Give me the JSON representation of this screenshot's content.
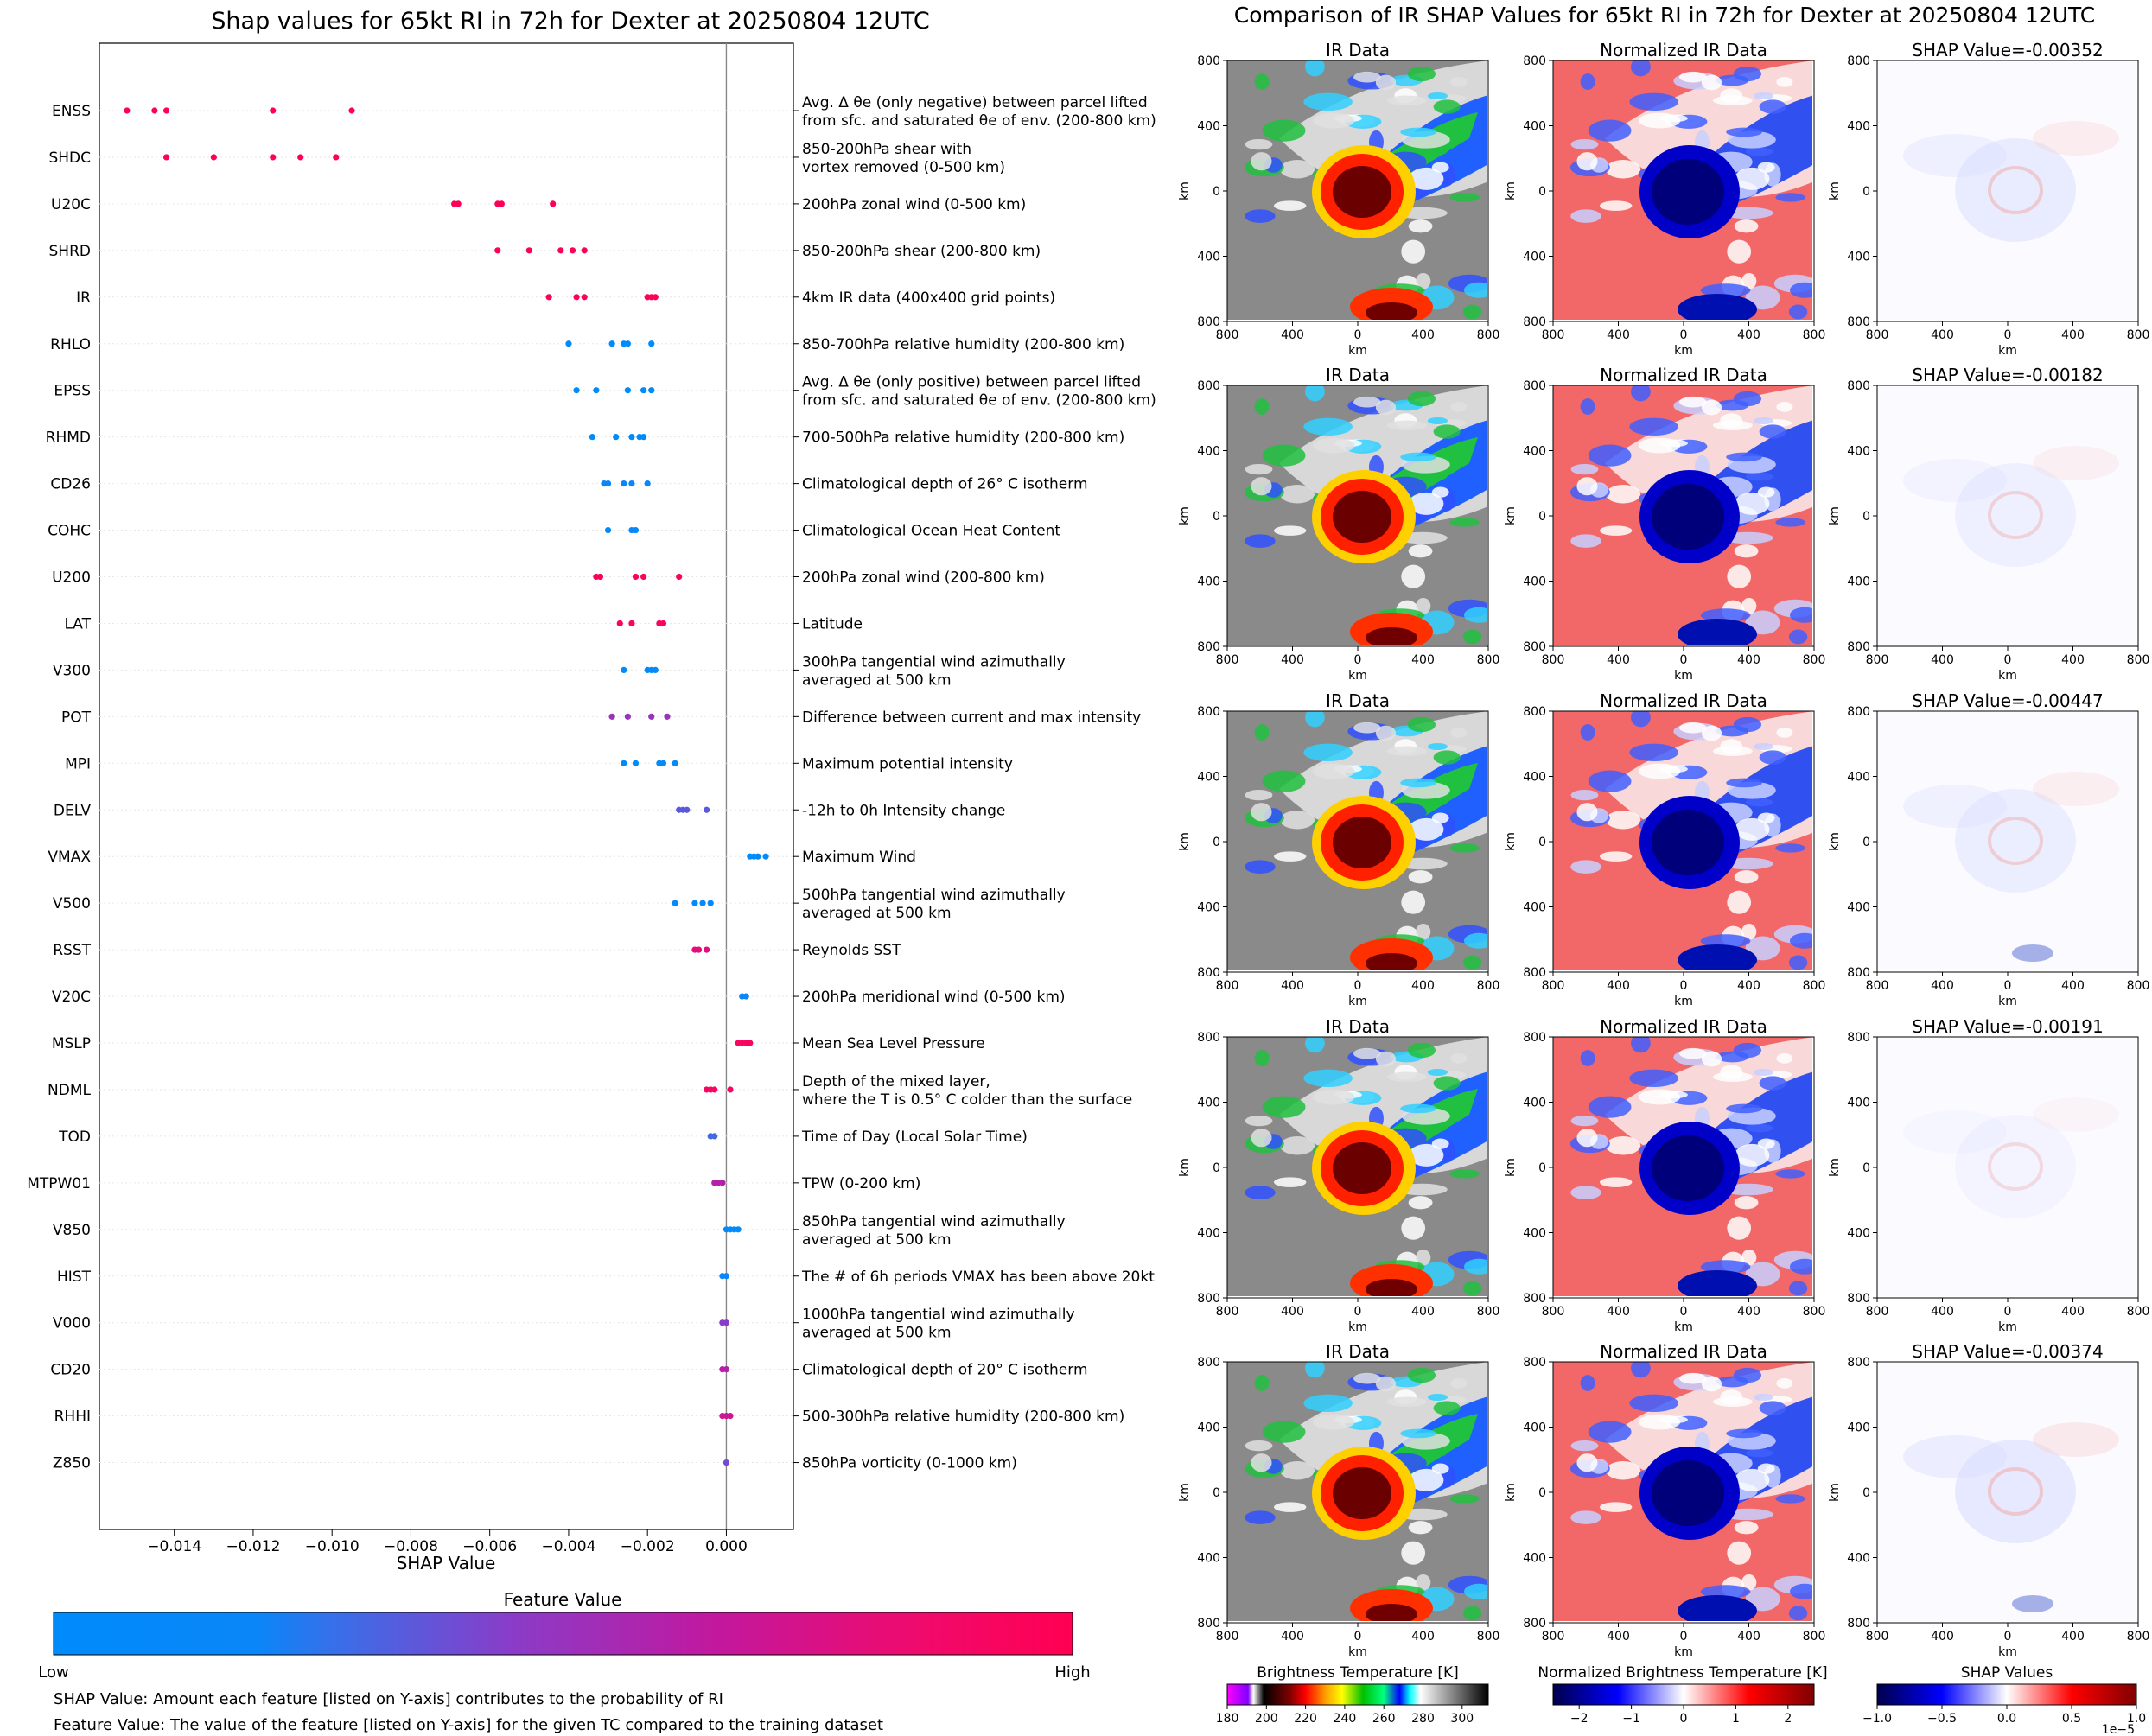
{
  "chart_data": [
    {
      "type": "scatter",
      "title": "Shap values for 65kt RI in 72h for Dexter at 20250804 12UTC",
      "xlabel": "SHAP Value",
      "xlim": [
        -0.0159,
        0.0017
      ],
      "xticks": [
        -0.014,
        -0.012,
        -0.01,
        -0.008,
        -0.006,
        -0.004,
        -0.002,
        0.0
      ],
      "xtick_labels": [
        "−0.014",
        "−0.012",
        "−0.010",
        "−0.008",
        "−0.006",
        "−0.004",
        "−0.002",
        "0.000"
      ],
      "grid": "horizontal rows, faint",
      "colorbar": {
        "title": "Feature Value",
        "low_label": "Low",
        "high_label": "High",
        "low_color": "#008bfb",
        "high_color": "#ff0052"
      },
      "notes": [
        "SHAP Value: Amount each feature [listed on Y-axis] contributes to the probability of RI",
        "Feature Value: The value of the feature [listed on Y-axis] for the given TC compared to the training dataset"
      ],
      "features": [
        {
          "code": "ENSS",
          "desc": [
            "Avg. Δ θe (only negative) between parcel lifted",
            "from sfc. and saturated θe of env. (200-800 km)"
          ],
          "shap": [
            -0.0152,
            -0.0145,
            -0.0142,
            -0.0115,
            -0.0095
          ],
          "fv": [
            1,
            1,
            1,
            1,
            1
          ]
        },
        {
          "code": "SHDC",
          "desc": [
            "850-200hPa shear with",
            "vortex removed (0-500 km)"
          ],
          "shap": [
            -0.0142,
            -0.013,
            -0.0115,
            -0.0108,
            -0.0099
          ],
          "fv": [
            1,
            1,
            1,
            1,
            1
          ]
        },
        {
          "code": "U20C",
          "desc": [
            "200hPa zonal wind (0-500 km)"
          ],
          "shap": [
            -0.0069,
            -0.0068,
            -0.0058,
            -0.0057,
            -0.0044
          ],
          "fv": [
            0.97,
            0.97,
            0.97,
            0.97,
            0.97
          ]
        },
        {
          "code": "SHRD",
          "desc": [
            "850-200hPa shear (200-800 km)"
          ],
          "shap": [
            -0.0058,
            -0.005,
            -0.0042,
            -0.0039,
            -0.0036
          ],
          "fv": [
            0.97,
            0.97,
            0.97,
            0.97,
            0.97
          ]
        },
        {
          "code": "IR",
          "desc": [
            "4km IR data (400x400 grid points)"
          ],
          "shap": [
            -0.0045,
            -0.0038,
            -0.0036,
            -0.002,
            -0.0019,
            -0.0018
          ],
          "fv": [
            0.97,
            0.97,
            0.97,
            0.97,
            0.97,
            0.97
          ]
        },
        {
          "code": "RHLO",
          "desc": [
            "850-700hPa relative humidity (200-800 km)"
          ],
          "shap": [
            -0.004,
            -0.0029,
            -0.0026,
            -0.0025,
            -0.0019
          ],
          "fv": [
            0,
            0,
            0,
            0,
            0
          ]
        },
        {
          "code": "EPSS",
          "desc": [
            "Avg. Δ θe (only positive) between parcel lifted",
            "from sfc. and saturated θe of env. (200-800 km)"
          ],
          "shap": [
            -0.0038,
            -0.0033,
            -0.0025,
            -0.0021,
            -0.0019
          ],
          "fv": [
            0,
            0,
            0,
            0,
            0
          ]
        },
        {
          "code": "RHMD",
          "desc": [
            "700-500hPa relative humidity (200-800 km)"
          ],
          "shap": [
            -0.0034,
            -0.0028,
            -0.0024,
            -0.0022,
            -0.0021
          ],
          "fv": [
            0,
            0,
            0,
            0,
            0
          ]
        },
        {
          "code": "CD26",
          "desc": [
            "Climatological depth of 26° C isotherm"
          ],
          "shap": [
            -0.0031,
            -0.003,
            -0.0026,
            -0.0024,
            -0.002
          ],
          "fv": [
            0.2,
            0.2,
            0.2,
            0.2,
            0.2
          ]
        },
        {
          "code": "COHC",
          "desc": [
            "Climatological Ocean Heat Content"
          ],
          "shap": [
            -0.003,
            -0.0024,
            -0.0023
          ],
          "fv": [
            0.12,
            0.12,
            0.12
          ]
        },
        {
          "code": "U200",
          "desc": [
            "200hPa zonal wind (200-800 km)"
          ],
          "shap": [
            -0.0033,
            -0.0032,
            -0.0023,
            -0.0021,
            -0.0012
          ],
          "fv": [
            0.95,
            0.95,
            0.95,
            0.95,
            0.95
          ]
        },
        {
          "code": "LAT",
          "desc": [
            "Latitude"
          ],
          "shap": [
            -0.0027,
            -0.0024,
            -0.0017,
            -0.0016
          ],
          "fv": [
            0.92,
            0.92,
            0.92,
            0.92
          ]
        },
        {
          "code": "V300",
          "desc": [
            "300hPa tangential wind azimuthally",
            "averaged at 500 km"
          ],
          "shap": [
            -0.0026,
            -0.002,
            -0.0019,
            -0.0018
          ],
          "fv": [
            0.05,
            0.05,
            0.05,
            0.05
          ]
        },
        {
          "code": "POT",
          "desc": [
            "Difference between current and max intensity"
          ],
          "shap": [
            -0.0029,
            -0.0025,
            -0.0019,
            -0.0015
          ],
          "fv": [
            0.5,
            0.5,
            0.5,
            0.5
          ]
        },
        {
          "code": "MPI",
          "desc": [
            "Maximum potential intensity"
          ],
          "shap": [
            -0.0026,
            -0.0023,
            -0.0017,
            -0.0016,
            -0.0013
          ],
          "fv": [
            0.05,
            0.05,
            0.05,
            0.05,
            0.05
          ]
        },
        {
          "code": "DELV",
          "desc": [
            "-12h to 0h Intensity change"
          ],
          "shap": [
            -0.0012,
            -0.0011,
            -0.001,
            -0.0005
          ],
          "fv": [
            0.35,
            0.35,
            0.35,
            0.35
          ]
        },
        {
          "code": "VMAX",
          "desc": [
            "Maximum Wind"
          ],
          "shap": [
            0.0006,
            0.0007,
            0.0008,
            0.001
          ],
          "fv": [
            0.05,
            0.05,
            0.05,
            0.05
          ]
        },
        {
          "code": "V500",
          "desc": [
            "500hPa tangential wind azimuthally",
            "averaged at 500 km"
          ],
          "shap": [
            -0.0013,
            -0.0008,
            -0.0006,
            -0.0004
          ],
          "fv": [
            0.05,
            0.05,
            0.05,
            0.05
          ]
        },
        {
          "code": "RSST",
          "desc": [
            "Reynolds SST"
          ],
          "shap": [
            -0.0008,
            -0.0007,
            -0.0005
          ],
          "fv": [
            0.8,
            0.8,
            0.8
          ]
        },
        {
          "code": "V20C",
          "desc": [
            "200hPa meridional wind (0-500 km)"
          ],
          "shap": [
            0.0004,
            0.0005
          ],
          "fv": [
            0.2,
            0.2
          ]
        },
        {
          "code": "MSLP",
          "desc": [
            "Mean Sea Level Pressure"
          ],
          "shap": [
            0.0003,
            0.0004,
            0.0005,
            0.0006
          ],
          "fv": [
            0.92,
            0.92,
            0.92,
            0.92
          ]
        },
        {
          "code": "NDML",
          "desc": [
            "Depth of the mixed layer,",
            "where the T is 0.5° C colder than the surface"
          ],
          "shap": [
            -0.0005,
            -0.0004,
            -0.0003,
            0.0001
          ],
          "fv": [
            0.9,
            0.9,
            0.9,
            0.9
          ]
        },
        {
          "code": "TOD",
          "desc": [
            "Time of Day (Local Solar Time)"
          ],
          "shap": [
            -0.0004,
            -0.0003
          ],
          "fv": [
            0.3,
            0.3
          ]
        },
        {
          "code": "MTPW01",
          "desc": [
            "TPW (0-200 km)"
          ],
          "shap": [
            -0.0003,
            -0.0002,
            -0.0001
          ],
          "fv": [
            0.6,
            0.6,
            0.6
          ]
        },
        {
          "code": "V850",
          "desc": [
            "850hPa tangential wind azimuthally",
            "averaged at 500 km"
          ],
          "shap": [
            0.0,
            0.0001,
            0.0002,
            0.0003
          ],
          "fv": [
            0.05,
            0.05,
            0.05,
            0.05
          ]
        },
        {
          "code": "HIST",
          "desc": [
            "The # of 6h periods VMAX has been above 20kt"
          ],
          "shap": [
            -0.0001,
            0.0
          ],
          "fv": [
            0.15,
            0.15
          ]
        },
        {
          "code": "V000",
          "desc": [
            "1000hPa tangential wind azimuthally",
            "averaged at 500 km"
          ],
          "shap": [
            -0.0001,
            0.0
          ],
          "fv": [
            0.45,
            0.45
          ]
        },
        {
          "code": "CD20",
          "desc": [
            "Climatological depth of 20° C isotherm"
          ],
          "shap": [
            -0.0001,
            0.0
          ],
          "fv": [
            0.6,
            0.6
          ]
        },
        {
          "code": "RHHI",
          "desc": [
            "500-300hPa relative humidity (200-800 km)"
          ],
          "shap": [
            -0.0001,
            0.0,
            0.0001
          ],
          "fv": [
            0.7,
            0.7,
            0.7
          ]
        },
        {
          "code": "Z850",
          "desc": [
            "850hPa vorticity (0-1000 km)"
          ],
          "shap": [
            0.0
          ],
          "fv": [
            0.4
          ]
        }
      ]
    },
    {
      "type": "heatmap",
      "title": "Comparison of IR SHAP Values for 65kt RI in 72h for Dexter at 20250804 12UTC",
      "column_titles": [
        "IR Data",
        "Normalized IR Data"
      ],
      "shap_titles": [
        "SHAP Value=-0.00352",
        "SHAP Value=-0.00182",
        "SHAP Value=-0.00447",
        "SHAP Value=-0.00191",
        "SHAP Value=-0.00374"
      ],
      "xlabel": "km",
      "ylabel": "km",
      "tick_labels": [
        "800",
        "400",
        "0",
        "400",
        "800"
      ],
      "colorbars": [
        {
          "title": "Brightness Temperature [K]",
          "ticks": [
            "180",
            "200",
            "220",
            "240",
            "260",
            "280",
            "300"
          ]
        },
        {
          "title": "Normalized Brightness Temperature [K]",
          "ticks": [
            "−2",
            "−1",
            "0",
            "1",
            "2"
          ]
        },
        {
          "title": "SHAP Values",
          "ticks": [
            "−1.0",
            "−0.5",
            "0.0",
            "0.5",
            "1.0"
          ],
          "offset": "1e−5"
        }
      ]
    }
  ]
}
